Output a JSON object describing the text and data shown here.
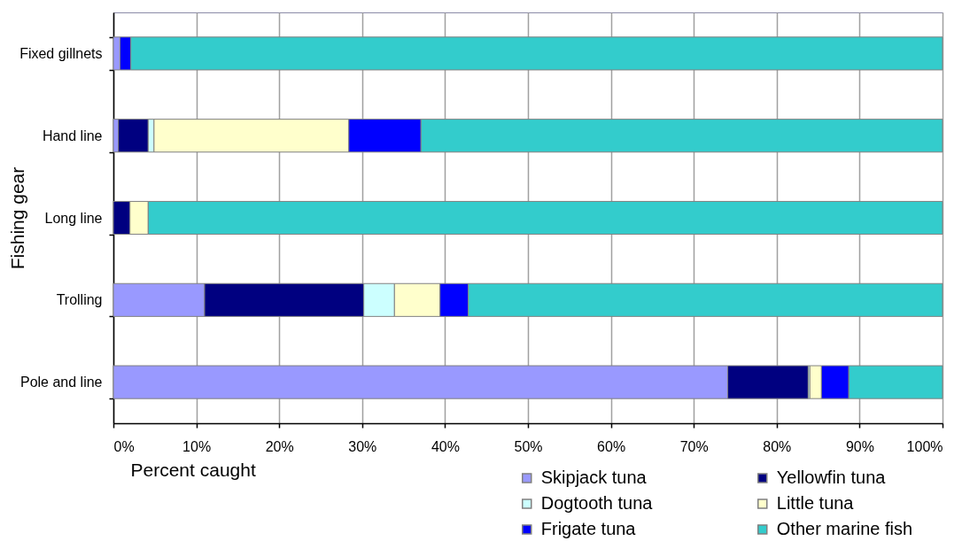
{
  "chart_data": {
    "type": "bar",
    "orientation": "horizontal",
    "stacked": true,
    "xlabel": "Percent caught",
    "ylabel": "Fishing gear",
    "categories": [
      "Fixed gillnets",
      "Hand line",
      "Long line",
      "Trolling",
      "Pole and line"
    ],
    "series": [
      {
        "name": "Skipjack tuna",
        "color": "#9999ff",
        "values": [
          0.8,
          0.6,
          null,
          11.0,
          74.1
        ]
      },
      {
        "name": "Yellowfin tuna",
        "color": "#000080",
        "values": [
          null,
          3.6,
          2.0,
          19.2,
          9.7
        ]
      },
      {
        "name": "Dogtooth tuna",
        "color": "#ccffff",
        "values": [
          null,
          0.7,
          null,
          3.7,
          0.2
        ]
      },
      {
        "name": "Little tuna",
        "color": "#ffffcc",
        "values": [
          null,
          23.5,
          2.2,
          5.5,
          1.4
        ]
      },
      {
        "name": "Frigate tuna",
        "color": "#0000ff",
        "values": [
          1.3,
          8.7,
          null,
          3.4,
          3.3
        ]
      },
      {
        "name": "Other marine fish",
        "color": "#33cccc",
        "values": [
          97.9,
          62.9,
          95.8,
          57.2,
          11.3
        ]
      }
    ],
    "xlim": [
      0,
      100
    ],
    "xticks": [
      {
        "value": 0,
        "label": "0%"
      },
      {
        "value": 10,
        "label": "10%"
      },
      {
        "value": 20,
        "label": "20%"
      },
      {
        "value": 30,
        "label": "30%"
      },
      {
        "value": 40,
        "label": "40%"
      },
      {
        "value": 50,
        "label": "50%"
      },
      {
        "value": 60,
        "label": "60%"
      },
      {
        "value": 70,
        "label": "70%"
      },
      {
        "value": 80,
        "label": "80%"
      },
      {
        "value": 90,
        "label": "90%"
      },
      {
        "value": 100,
        "label": "100%"
      }
    ],
    "grid": "x",
    "legend": "bottom right"
  }
}
